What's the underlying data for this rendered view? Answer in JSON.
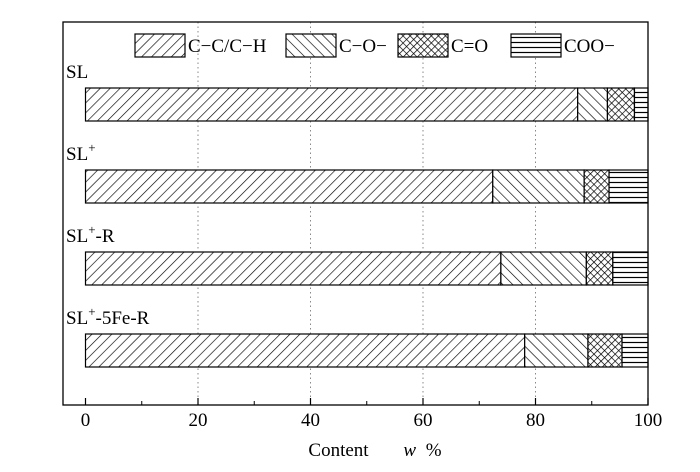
{
  "chart_data": {
    "type": "bar",
    "orientation": "horizontal",
    "stacked": true,
    "xlabel_prefix": "Content",
    "xlabel_var": "w",
    "xlabel_unit": "%",
    "xlim": [
      -4,
      100
    ],
    "xticks": [
      0,
      20,
      40,
      60,
      80,
      100
    ],
    "grid": "vertical dotted",
    "legend_position": "top",
    "categories": [
      {
        "base": "SL",
        "sup": "",
        "suffix": ""
      },
      {
        "base": "SL",
        "sup": "+",
        "suffix": ""
      },
      {
        "base": "SL",
        "sup": "+",
        "suffix": "-R"
      },
      {
        "base": "SL",
        "sup": "+",
        "suffix": "-5Fe-R"
      }
    ],
    "series": [
      {
        "name": "C−C/C−H",
        "pattern": "diag-right",
        "values": [
          91.0,
          75.3,
          76.8,
          81.2
        ]
      },
      {
        "name": "C−O−",
        "pattern": "diag-left",
        "values": [
          5.5,
          16.9,
          15.8,
          11.7
        ]
      },
      {
        "name": "C=O",
        "pattern": "crosshatch",
        "values": [
          5.0,
          4.6,
          4.9,
          6.3
        ]
      },
      {
        "name": "COO−",
        "pattern": "horizontal",
        "values": [
          2.5,
          7.2,
          6.5,
          4.8
        ]
      }
    ]
  }
}
